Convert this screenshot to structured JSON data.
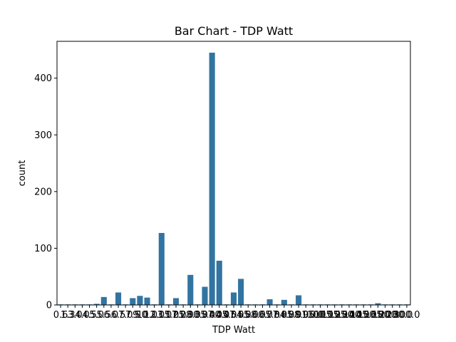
{
  "chart_data": {
    "type": "bar",
    "title": "Bar Chart - TDP Watt",
    "xlabel": "TDP Watt",
    "ylabel": "count",
    "ylim": [
      0,
      465
    ],
    "yticks": [
      0,
      100,
      200,
      300,
      400
    ],
    "bar_color": "#3274a1",
    "grid": false,
    "categories": [
      "0.6",
      "1.3",
      "3.0",
      "4.0",
      "4.5",
      "5.0",
      "5.5",
      "6.0",
      "6.5",
      "7.0",
      "7.5",
      "9.0",
      "10.0",
      "12.0",
      "13.0",
      "15.0",
      "17.0",
      "25.0",
      "28.0",
      "30.0",
      "35.0",
      "37.0",
      "40.0",
      "45.0",
      "47.0",
      "54.0",
      "55.0",
      "58.0",
      "60.0",
      "65.0",
      "77.0",
      "84.0",
      "85.0",
      "88.0",
      "91.0",
      "95.0",
      "100.0",
      "105.0",
      "115.0",
      "125.0",
      "130.0",
      "140.0",
      "145.0",
      "150.0",
      "165.0",
      "180.0",
      "200.0",
      "230.0",
      "300.0"
    ],
    "values": [
      1,
      1,
      1,
      1,
      1,
      2,
      14,
      1,
      22,
      1,
      12,
      16,
      13,
      1,
      127,
      1,
      12,
      1,
      53,
      1,
      32,
      445,
      78,
      1,
      22,
      46,
      1,
      1,
      1,
      10,
      1,
      9,
      1,
      17,
      1,
      1,
      1,
      1,
      1,
      1,
      1,
      1,
      1,
      1,
      3,
      1,
      1,
      1,
      1
    ]
  }
}
